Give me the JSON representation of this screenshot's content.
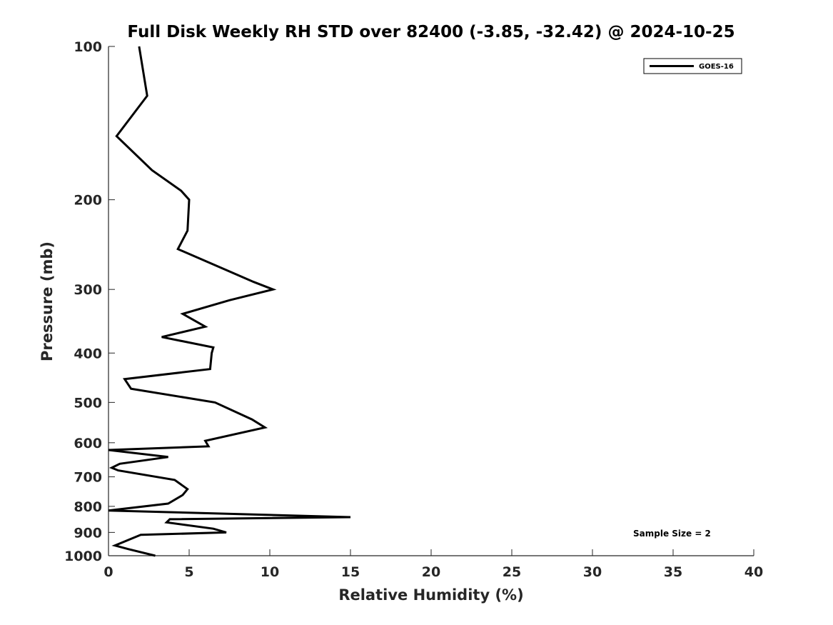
{
  "chart_data": {
    "type": "line",
    "title": "Full Disk Weekly RH STD over 82400 (-3.85, -32.42) @ 2024-10-25",
    "xlabel": "Relative Humidity (%)",
    "ylabel": "Pressure (mb)",
    "xlim": [
      0,
      40
    ],
    "ylim": [
      100,
      1000
    ],
    "yscale": "log",
    "yreversed": true,
    "x_ticks": [
      "0",
      "5",
      "10",
      "15",
      "20",
      "25",
      "30",
      "35",
      "40"
    ],
    "y_ticks": [
      "100",
      "200",
      "300",
      "400",
      "500",
      "600",
      "700",
      "800",
      "900",
      "1000"
    ],
    "grid": false,
    "legend": {
      "position": "top-right",
      "entries": [
        "GOES-16"
      ]
    },
    "annotation": "Sample Size = 2",
    "series": [
      {
        "name": "GOES-16",
        "color": "#000000",
        "points": [
          [
            1.9,
            100
          ],
          [
            2.4,
            125
          ],
          [
            0.5,
            150
          ],
          [
            2.7,
            175
          ],
          [
            4.5,
            192
          ],
          [
            5.0,
            200
          ],
          [
            4.9,
            230
          ],
          [
            4.3,
            250
          ],
          [
            9.0,
            290
          ],
          [
            10.2,
            300
          ],
          [
            7.5,
            315
          ],
          [
            4.6,
            335
          ],
          [
            6.0,
            355
          ],
          [
            3.3,
            372
          ],
          [
            6.5,
            390
          ],
          [
            6.4,
            400
          ],
          [
            6.3,
            430
          ],
          [
            1.0,
            450
          ],
          [
            1.4,
            470
          ],
          [
            6.6,
            500
          ],
          [
            8.9,
            540
          ],
          [
            9.7,
            560
          ],
          [
            6.0,
            595
          ],
          [
            6.2,
            610
          ],
          [
            0.0,
            620
          ],
          [
            3.7,
            640
          ],
          [
            0.7,
            660
          ],
          [
            0.2,
            672
          ],
          [
            0.6,
            680
          ],
          [
            4.1,
            710
          ],
          [
            4.9,
            740
          ],
          [
            4.6,
            760
          ],
          [
            3.7,
            790
          ],
          [
            0.0,
            815
          ],
          [
            15.0,
            840
          ],
          [
            3.8,
            848
          ],
          [
            3.6,
            860
          ],
          [
            6.5,
            885
          ],
          [
            7.3,
            900
          ],
          [
            2.0,
            910
          ],
          [
            0.4,
            955
          ],
          [
            1.2,
            970
          ],
          [
            2.9,
            1000
          ]
        ]
      }
    ]
  }
}
